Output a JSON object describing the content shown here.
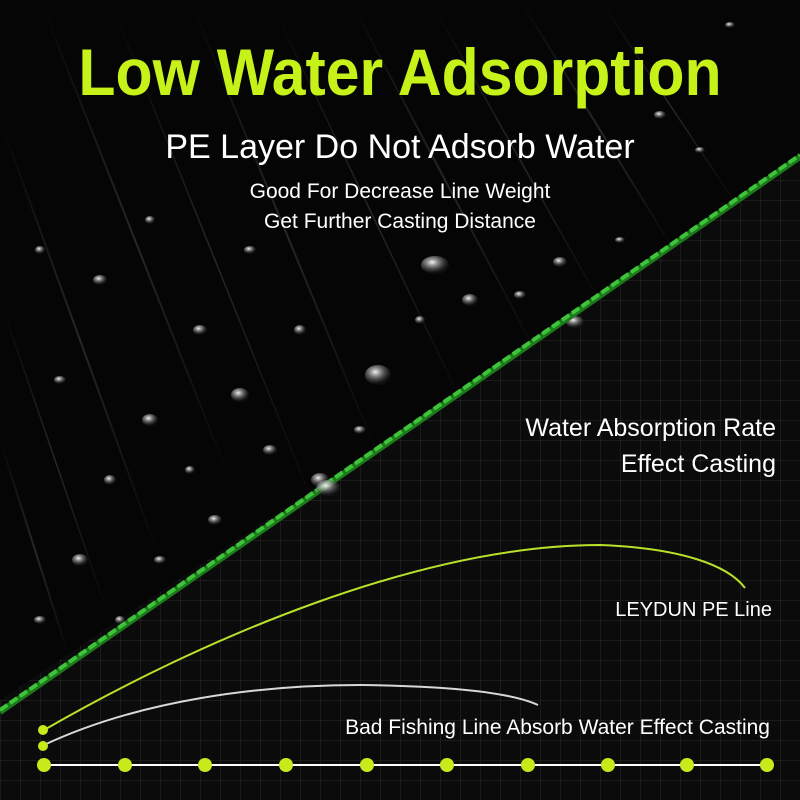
{
  "header": {
    "title": "Low Water Adsorption",
    "subtitle": "PE Layer Do Not Adsorb Water",
    "line1": "Good For Decrease Line Weight",
    "line2": "Get Further Casting Distance"
  },
  "comparison": {
    "heading_line1": "Water Absorption Rate",
    "heading_line2": "Effect Casting",
    "good_label": "LEYDUN PE Line",
    "bad_label": "Bad Fishing Line Absorb Water Effect Casting"
  },
  "colors": {
    "title": "#c6f21a",
    "fishing_line": "#3ec43a",
    "good_curve": "#b8e12a",
    "bad_curve": "#d8d8d8",
    "dots": "#c9ea1a"
  }
}
